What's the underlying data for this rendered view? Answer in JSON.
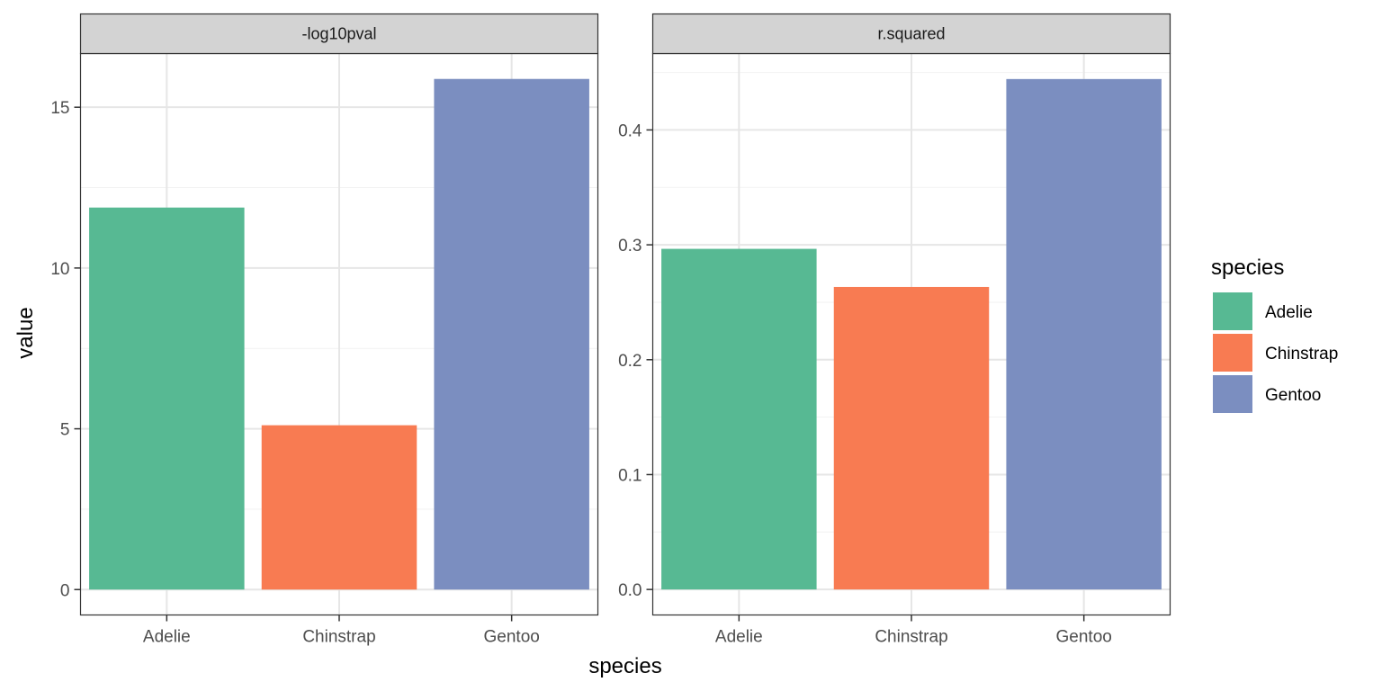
{
  "colors": {
    "Adelie": "#57b993",
    "Chinstrap": "#f87b52",
    "Gentoo": "#7b8ec0",
    "strip_fill": "#d3d3d3",
    "grid_major": "#e6e6e6",
    "grid_minor": "#f2f2f2",
    "panel_border": "#333333"
  },
  "chart_data": {
    "type": "bar",
    "facet_variable": "metric",
    "xlabel": "species",
    "ylabel": "value",
    "categories": [
      "Adelie",
      "Chinstrap",
      "Gentoo"
    ],
    "grid": true,
    "legend": {
      "title": "species",
      "position": "right",
      "entries": [
        "Adelie",
        "Chinstrap",
        "Gentoo"
      ]
    },
    "panels": [
      {
        "title": "-log10pval",
        "values": [
          11.88,
          5.11,
          15.88
        ],
        "ylim": [
          -0.79,
          16.67
        ],
        "yticks": [
          0,
          5,
          10,
          15
        ],
        "ytick_labels": [
          "0",
          "5",
          "10",
          "15"
        ]
      },
      {
        "title": "r.squared",
        "values": [
          0.2965,
          0.2633,
          0.4443
        ],
        "ylim": [
          -0.0222,
          0.4665
        ],
        "yticks": [
          0.0,
          0.1,
          0.2,
          0.3,
          0.4
        ],
        "ytick_labels": [
          "0.0",
          "0.1",
          "0.2",
          "0.3",
          "0.4"
        ]
      }
    ]
  }
}
